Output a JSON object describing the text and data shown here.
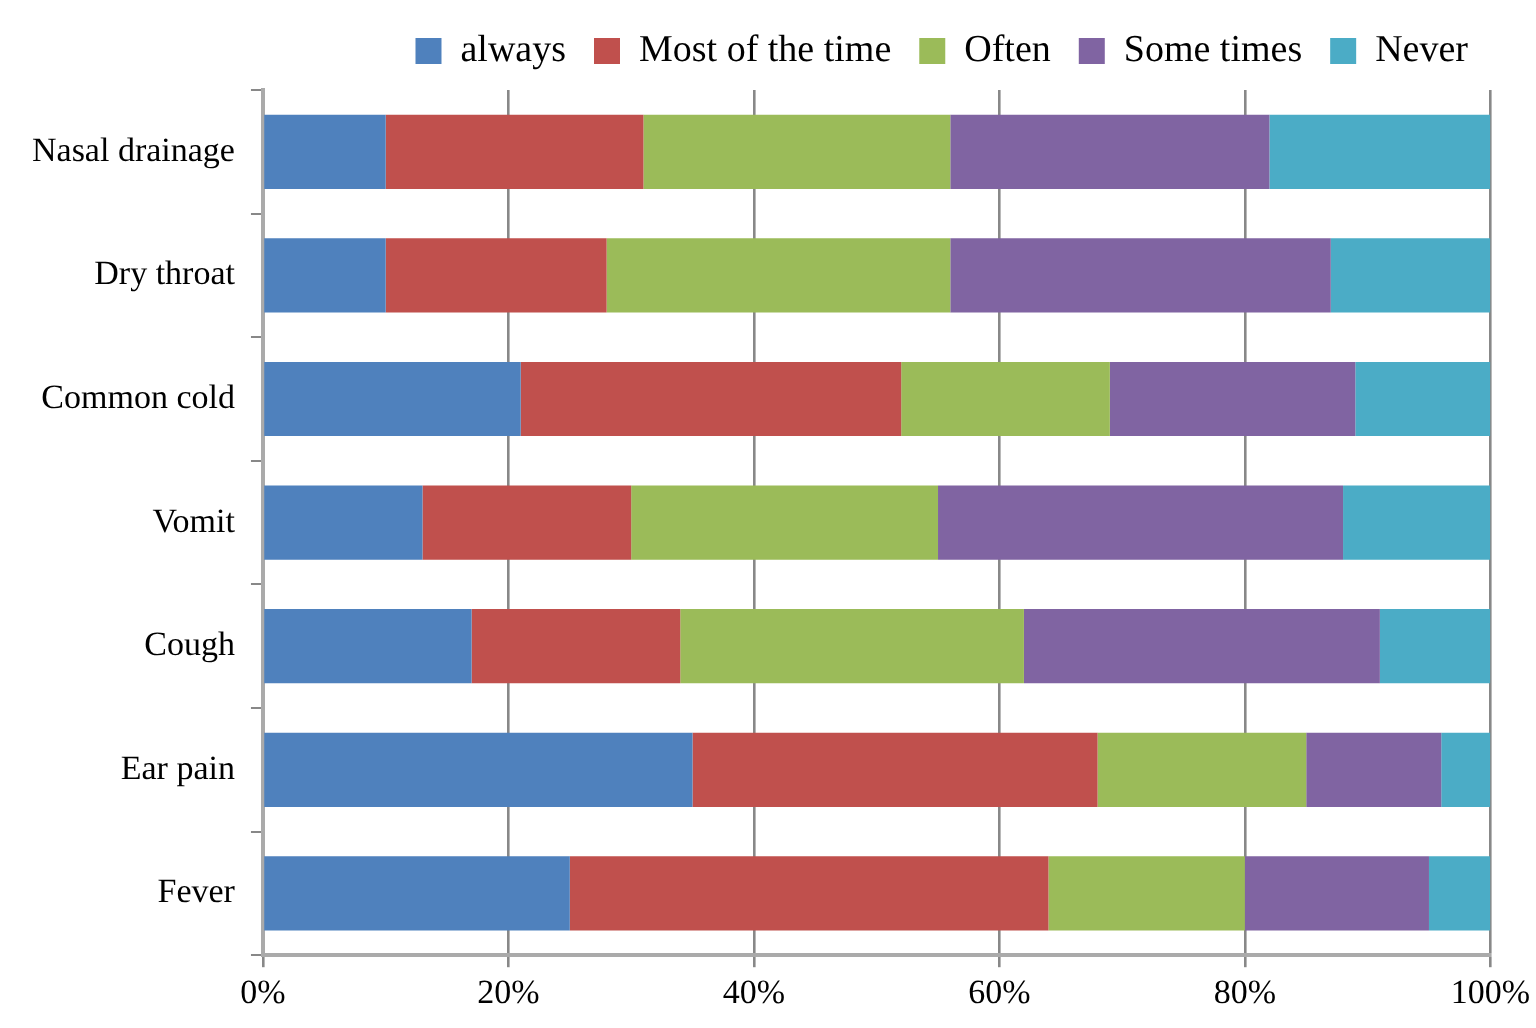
{
  "chart_data": {
    "type": "bar",
    "orientation": "horizontal",
    "stacked": true,
    "categories": [
      "Nasal drainage",
      "Dry throat",
      "Common cold",
      "Vomit",
      "Cough",
      "Ear pain",
      "Fever"
    ],
    "series": [
      {
        "name": "always",
        "color": "#4f81bd",
        "values": [
          10,
          10,
          21,
          13,
          17,
          35,
          25
        ]
      },
      {
        "name": "Most of the time",
        "color": "#c0504d",
        "values": [
          21,
          18,
          31,
          17,
          17,
          33,
          39
        ]
      },
      {
        "name": "Often",
        "color": "#9bbb59",
        "values": [
          25,
          28,
          17,
          25,
          28,
          17,
          16
        ]
      },
      {
        "name": "Some times",
        "color": "#8064a2",
        "values": [
          26,
          31,
          20,
          33,
          29,
          11,
          15
        ]
      },
      {
        "name": "Never",
        "color": "#4bacc6",
        "values": [
          18,
          13,
          11,
          12,
          9,
          4,
          5
        ]
      }
    ],
    "xlim": [
      0,
      100
    ],
    "xticks": [
      {
        "value": 0,
        "label": "0%"
      },
      {
        "value": 20,
        "label": "20%"
      },
      {
        "value": 40,
        "label": "40%"
      },
      {
        "value": 60,
        "label": "60%"
      },
      {
        "value": 80,
        "label": "80%"
      },
      {
        "value": 100,
        "label": "100%"
      }
    ],
    "grid": "x",
    "legend": "top"
  }
}
